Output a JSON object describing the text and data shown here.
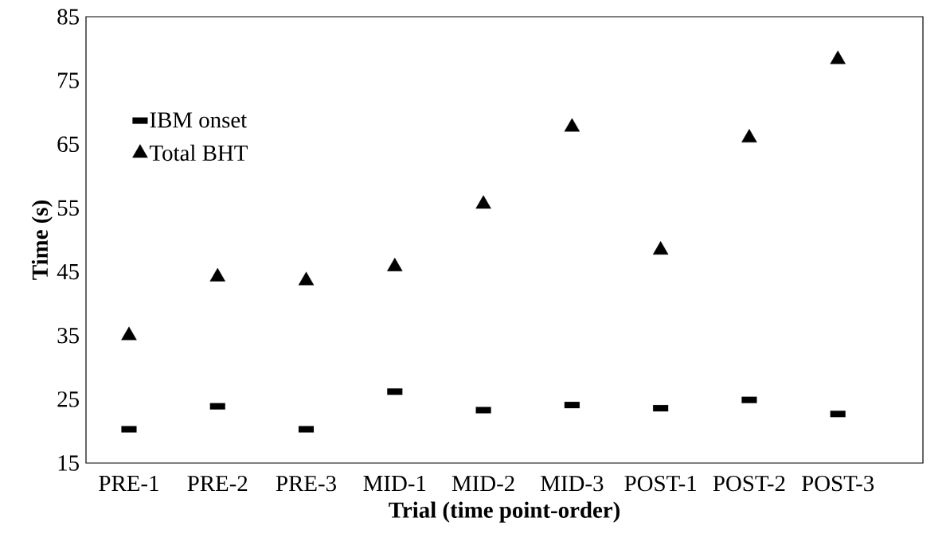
{
  "chart_data": {
    "type": "scatter",
    "xlabel": "Trial (time point-order)",
    "ylabel": "Time (s)",
    "categories": [
      "PRE-1",
      "PRE-2",
      "PRE-3",
      "MID-1",
      "MID-2",
      "MID-3",
      "POST-1",
      "POST-2",
      "POST-3"
    ],
    "series": [
      {
        "name": "IBM onset",
        "color": "#000000",
        "marker": "square",
        "values": [
          20.3,
          23.9,
          20.3,
          26.2,
          23.3,
          24.1,
          23.6,
          24.9,
          22.7
        ]
      },
      {
        "name": "Total BHT",
        "color": "#000000",
        "marker": "triangle",
        "values": [
          35.0,
          44.2,
          43.6,
          45.8,
          55.6,
          67.7,
          48.4,
          66.0,
          78.3
        ]
      }
    ],
    "ylim": [
      15,
      85
    ],
    "yticks": [
      15,
      25,
      35,
      45,
      55,
      65,
      75,
      85
    ],
    "grid": false,
    "legend": "top left"
  }
}
